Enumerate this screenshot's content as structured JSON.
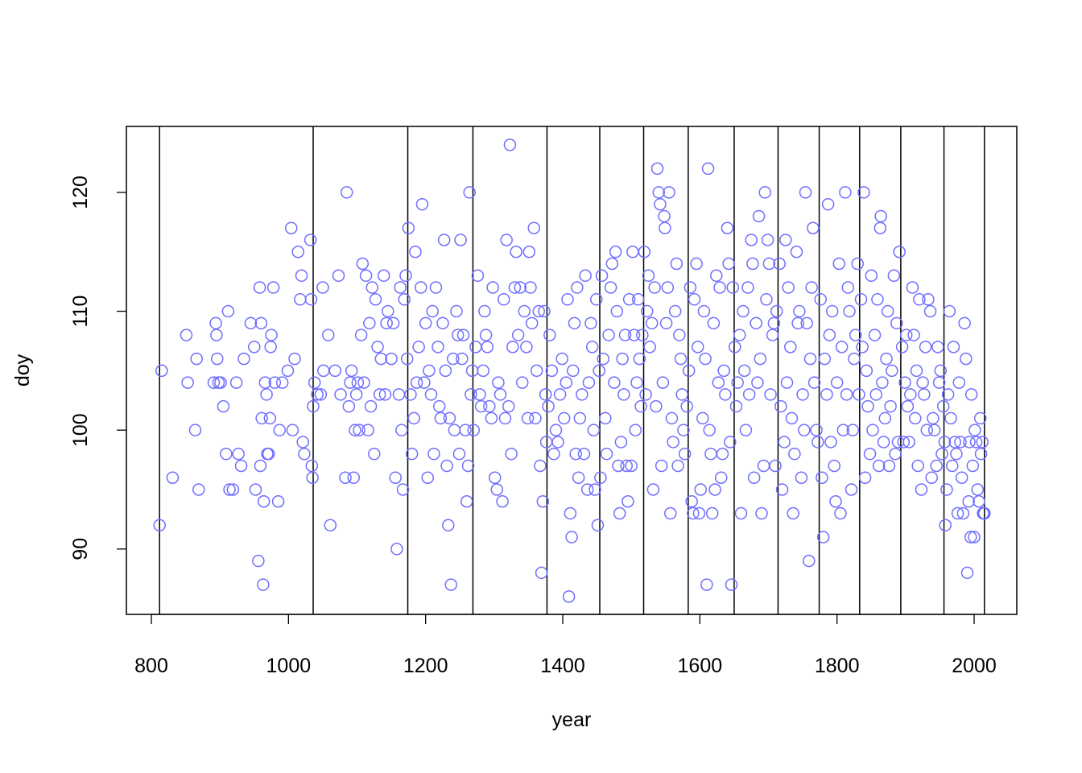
{
  "chart_data": {
    "type": "scatter",
    "x_label": "year",
    "y_label": "doy",
    "color": "#6f6fff",
    "line_color": "#000000",
    "xlim": [
      763.6,
      2062.2
    ],
    "ylim": [
      84.5,
      125.55
    ],
    "xticks": [
      800,
      1000,
      1200,
      1400,
      1600,
      1800,
      2000
    ],
    "yticks": [
      90,
      100,
      110,
      120
    ],
    "knots": [
      812,
      1036,
      1174,
      1269,
      1377,
      1454,
      1518,
      1583,
      1650,
      1714,
      1774,
      1833,
      1893,
      1956,
      2015
    ],
    "x": [
      812,
      815,
      831,
      851,
      853,
      864,
      866,
      869,
      891,
      894,
      895,
      896,
      898,
      901,
      905,
      909,
      912,
      914,
      919,
      924,
      927,
      931,
      935,
      945,
      950,
      952,
      956,
      958,
      959,
      960,
      961,
      963,
      964,
      966,
      968,
      969,
      971,
      973,
      974,
      975,
      978,
      980,
      985,
      987,
      991,
      999,
      1004,
      1006,
      1009,
      1014,
      1017,
      1019,
      1021,
      1023,
      1032,
      1033,
      1034,
      1035,
      1036,
      1038,
      1042,
      1047,
      1050,
      1051,
      1058,
      1061,
      1068,
      1073,
      1076,
      1083,
      1085,
      1088,
      1090,
      1092,
      1095,
      1097,
      1099,
      1101,
      1103,
      1106,
      1108,
      1110,
      1113,
      1116,
      1118,
      1120,
      1122,
      1125,
      1127,
      1130,
      1133,
      1135,
      1139,
      1141,
      1143,
      1145,
      1150,
      1153,
      1156,
      1158,
      1161,
      1163,
      1165,
      1167,
      1169,
      1171,
      1173,
      1175,
      1178,
      1180,
      1183,
      1185,
      1187,
      1190,
      1193,
      1195,
      1198,
      1200,
      1203,
      1205,
      1208,
      1210,
      1212,
      1215,
      1218,
      1220,
      1222,
      1225,
      1227,
      1229,
      1231,
      1233,
      1235,
      1237,
      1240,
      1242,
      1245,
      1247,
      1249,
      1251,
      1253,
      1255,
      1258,
      1260,
      1262,
      1264,
      1266,
      1268,
      1270,
      1273,
      1276,
      1279,
      1281,
      1284,
      1286,
      1288,
      1290,
      1293,
      1296,
      1298,
      1301,
      1304,
      1306,
      1309,
      1312,
      1314,
      1316,
      1318,
      1321,
      1323,
      1325,
      1327,
      1330,
      1332,
      1335,
      1338,
      1341,
      1344,
      1347,
      1349,
      1351,
      1353,
      1355,
      1358,
      1360,
      1362,
      1365,
      1367,
      1369,
      1371,
      1373,
      1375,
      1376,
      1379,
      1381,
      1384,
      1387,
      1390,
      1393,
      1396,
      1399,
      1402,
      1405,
      1407,
      1409,
      1411,
      1413,
      1415,
      1417,
      1419,
      1421,
      1423,
      1425,
      1428,
      1431,
      1433,
      1436,
      1438,
      1441,
      1443,
      1445,
      1447,
      1449,
      1451,
      1453,
      1455,
      1457,
      1459,
      1462,
      1464,
      1467,
      1470,
      1472,
      1475,
      1477,
      1479,
      1481,
      1483,
      1485,
      1487,
      1489,
      1491,
      1493,
      1495,
      1497,
      1500,
      1502,
      1504,
      1506,
      1508,
      1510,
      1512,
      1514,
      1516,
      1519,
      1521,
      1523,
      1525,
      1527,
      1530,
      1532,
      1534,
      1536,
      1538,
      1540,
      1542,
      1544,
      1546,
      1548,
      1549,
      1551,
      1553,
      1555,
      1557,
      1559,
      1561,
      1564,
      1566,
      1568,
      1570,
      1572,
      1574,
      1576,
      1578,
      1581,
      1584,
      1586,
      1588,
      1590,
      1592,
      1595,
      1597,
      1599,
      1601,
      1604,
      1606,
      1608,
      1610,
      1612,
      1614,
      1616,
      1618,
      1620,
      1622,
      1624,
      1627,
      1629,
      1631,
      1633,
      1635,
      1637,
      1640,
      1642,
      1644,
      1646,
      1648,
      1651,
      1653,
      1655,
      1658,
      1660,
      1663,
      1665,
      1667,
      1670,
      1672,
      1675,
      1677,
      1679,
      1682,
      1684,
      1686,
      1688,
      1690,
      1693,
      1695,
      1697,
      1699,
      1701,
      1703,
      1706,
      1708,
      1710,
      1712,
      1716,
      1718,
      1720,
      1723,
      1725,
      1727,
      1729,
      1732,
      1734,
      1736,
      1738,
      1741,
      1743,
      1745,
      1748,
      1750,
      1752,
      1754,
      1756,
      1759,
      1761,
      1763,
      1765,
      1767,
      1770,
      1772,
      1776,
      1778,
      1780,
      1782,
      1785,
      1787,
      1789,
      1791,
      1793,
      1796,
      1798,
      1800,
      1803,
      1805,
      1807,
      1809,
      1812,
      1814,
      1816,
      1818,
      1821,
      1823,
      1825,
      1827,
      1830,
      1832,
      1835,
      1837,
      1839,
      1841,
      1843,
      1845,
      1848,
      1850,
      1852,
      1855,
      1857,
      1859,
      1861,
      1863,
      1864,
      1866,
      1868,
      1870,
      1872,
      1874,
      1876,
      1878,
      1880,
      1883,
      1885,
      1887,
      1889,
      1891,
      1895,
      1897,
      1899,
      1901,
      1903,
      1905,
      1907,
      1910,
      1912,
      1914,
      1916,
      1918,
      1920,
      1923,
      1925,
      1927,
      1929,
      1931,
      1933,
      1936,
      1938,
      1940,
      1942,
      1945,
      1947,
      1949,
      1951,
      1953,
      1955,
      1957,
      1958,
      1960,
      1962,
      1964,
      1966,
      1968,
      1970,
      1972,
      1974,
      1976,
      1978,
      1980,
      1982,
      1984,
      1986,
      1988,
      1990,
      1992,
      1993,
      1995,
      1996,
      1998,
      2000,
      2001,
      2003,
      2005,
      2007,
      2009,
      2010,
      2012,
      2013,
      2014,
      2015
    ],
    "values": [
      92,
      105,
      96,
      108,
      104,
      100,
      106,
      95,
      104,
      109,
      108,
      106,
      104,
      104,
      102,
      98,
      110,
      95,
      95,
      104,
      98,
      97,
      106,
      109,
      107,
      95,
      89,
      112,
      97,
      109,
      101,
      87,
      94,
      104,
      103,
      98,
      98,
      101,
      107,
      108,
      112,
      104,
      94,
      100,
      104,
      105,
      117,
      100,
      106,
      115,
      111,
      113,
      99,
      98,
      116,
      111,
      97,
      96,
      102,
      104,
      103,
      103,
      112,
      105,
      108,
      92,
      105,
      113,
      103,
      96,
      120,
      102,
      104,
      105,
      96,
      100,
      103,
      104,
      100,
      108,
      114,
      104,
      113,
      100,
      109,
      102,
      112,
      98,
      111,
      107,
      103,
      106,
      113,
      103,
      109,
      110,
      106,
      109,
      96,
      90,
      103,
      112,
      100,
      95,
      111,
      113,
      106,
      117,
      103,
      98,
      101,
      115,
      104,
      107,
      112,
      119,
      104,
      109,
      96,
      105,
      103,
      110,
      98,
      112,
      107,
      102,
      101,
      109,
      116,
      105,
      97,
      92,
      101,
      87,
      106,
      100,
      110,
      108,
      98,
      116,
      106,
      108,
      100,
      94,
      97,
      120,
      103,
      105,
      100,
      107,
      113,
      103,
      102,
      105,
      110,
      108,
      107,
      102,
      101,
      112,
      96,
      95,
      104,
      103,
      94,
      111,
      101,
      116,
      102,
      124,
      98,
      107,
      112,
      115,
      108,
      112,
      104,
      110,
      107,
      101,
      115,
      112,
      109,
      117,
      101,
      105,
      110,
      97,
      88,
      94,
      110,
      103,
      99,
      102,
      108,
      105,
      98,
      100,
      99,
      103,
      106,
      101,
      104,
      111,
      86,
      93,
      91,
      105,
      109,
      98,
      112,
      96,
      101,
      103,
      98,
      113,
      95,
      104,
      109,
      107,
      100,
      95,
      111,
      92,
      105,
      96,
      113,
      106,
      101,
      98,
      108,
      112,
      114,
      104,
      115,
      110,
      97,
      93,
      99,
      106,
      103,
      108,
      97,
      94,
      111,
      97,
      115,
      108,
      100,
      104,
      111,
      106,
      102,
      108,
      115,
      103,
      110,
      113,
      107,
      109,
      95,
      112,
      102,
      122,
      120,
      119,
      97,
      104,
      118,
      117,
      109,
      112,
      120,
      93,
      101,
      99,
      110,
      114,
      97,
      108,
      106,
      103,
      100,
      98,
      102,
      105,
      112,
      94,
      93,
      111,
      114,
      107,
      93,
      95,
      101,
      110,
      106,
      87,
      122,
      100,
      98,
      93,
      109,
      95,
      113,
      104,
      112,
      96,
      98,
      105,
      103,
      117,
      114,
      99,
      87,
      112,
      107,
      102,
      104,
      108,
      93,
      110,
      105,
      100,
      112,
      103,
      116,
      114,
      96,
      109,
      104,
      118,
      106,
      93,
      97,
      120,
      111,
      116,
      114,
      103,
      108,
      109,
      97,
      110,
      114,
      102,
      95,
      99,
      116,
      104,
      112,
      107,
      101,
      93,
      98,
      115,
      109,
      110,
      96,
      103,
      100,
      120,
      109,
      89,
      106,
      112,
      117,
      104,
      100,
      99,
      111,
      96,
      91,
      106,
      103,
      119,
      108,
      99,
      110,
      97,
      94,
      104,
      114,
      93,
      107,
      100,
      120,
      103,
      112,
      110,
      95,
      100,
      106,
      108,
      114,
      103,
      111,
      107,
      120,
      96,
      105,
      102,
      98,
      113,
      100,
      108,
      103,
      111,
      97,
      117,
      118,
      104,
      99,
      101,
      106,
      110,
      97,
      102,
      105,
      113,
      98,
      109,
      99,
      115,
      107,
      99,
      104,
      108,
      102,
      99,
      103,
      112,
      108,
      101,
      105,
      97,
      111,
      95,
      104,
      103,
      107,
      100,
      111,
      110,
      96,
      101,
      100,
      97,
      107,
      104,
      105,
      98,
      102,
      99,
      92,
      95,
      103,
      110,
      101,
      97,
      107,
      99,
      98,
      93,
      104,
      99,
      96,
      93,
      109,
      106,
      88,
      94,
      99,
      91,
      103,
      97,
      91,
      100,
      99,
      95,
      94,
      101,
      98,
      99,
      93,
      93,
      93
    ]
  }
}
